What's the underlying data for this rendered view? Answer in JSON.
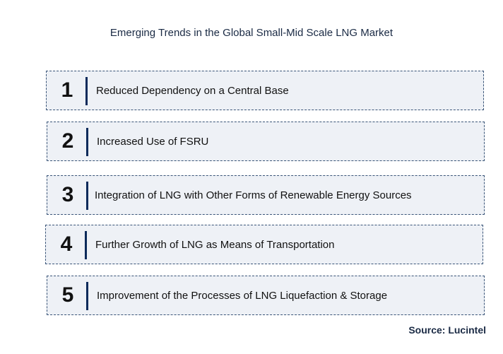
{
  "title": "Emerging Trends in the Global Small-Mid Scale LNG Market",
  "trends": [
    {
      "number": "1",
      "label": "Reduced Dependency on a Central Base"
    },
    {
      "number": "2",
      "label": "Increased Use of FSRU"
    },
    {
      "number": "3",
      "label": "Integration of LNG with Other Forms of Renewable Energy Sources"
    },
    {
      "number": "4",
      "label": "Further Growth of LNG as Means of Transportation"
    },
    {
      "number": "5",
      "label": "Improvement of the Processes of LNG Liquefaction & Storage"
    }
  ],
  "source": "Source: Lucintel",
  "colors": {
    "box_fill": "#eef1f6",
    "box_border": "#3a5578",
    "divider": "#0b2a5a"
  }
}
